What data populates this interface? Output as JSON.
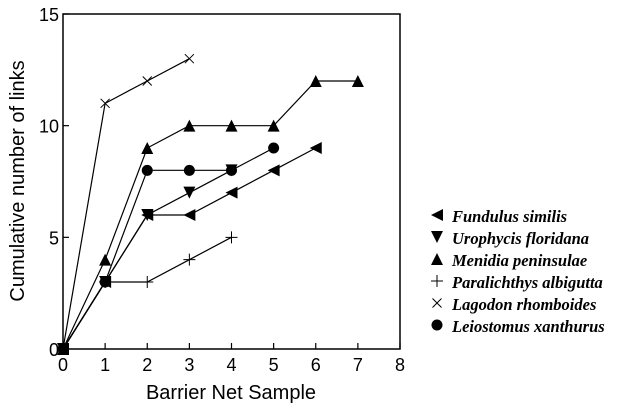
{
  "chart_data": {
    "type": "line",
    "xlabel": "Barrier Net Sample",
    "ylabel": "Cumulative number of links",
    "xlim": [
      0,
      8
    ],
    "ylim": [
      0,
      15
    ],
    "xticks": [
      "0",
      "1",
      "2",
      "3",
      "4",
      "5",
      "6",
      "7",
      "8"
    ],
    "yticks": [
      "0",
      "5",
      "10",
      "15"
    ],
    "grid": false,
    "legend_position": "right",
    "series": [
      {
        "name": "Fundulus similis",
        "marker": "triangle-left",
        "x": [
          0,
          1,
          2,
          3,
          4,
          5,
          6
        ],
        "values": [
          0,
          3,
          6,
          6,
          7,
          8,
          9
        ]
      },
      {
        "name": "Urophycis floridana",
        "marker": "triangle-down",
        "x": [
          0,
          1,
          2,
          3,
          4
        ],
        "values": [
          0,
          3,
          6,
          7,
          8
        ]
      },
      {
        "name": "Menidia peninsulae",
        "marker": "triangle-up",
        "x": [
          0,
          1,
          2,
          3,
          4,
          5,
          6,
          7
        ],
        "values": [
          0,
          4,
          9,
          10,
          10,
          10,
          12,
          12
        ]
      },
      {
        "name": "Paralichthys albigutta",
        "marker": "plus",
        "x": [
          0,
          1,
          2,
          3,
          4
        ],
        "values": [
          0,
          3,
          3,
          4,
          5
        ]
      },
      {
        "name": "Lagodon rhomboides",
        "marker": "cross",
        "x": [
          0,
          1,
          2,
          3
        ],
        "values": [
          0,
          11,
          12,
          13
        ]
      },
      {
        "name": "Leiostomus xanthurus",
        "marker": "circle",
        "x": [
          0,
          1,
          2,
          3,
          4,
          5
        ],
        "values": [
          0,
          3,
          8,
          8,
          8,
          9
        ]
      }
    ]
  }
}
